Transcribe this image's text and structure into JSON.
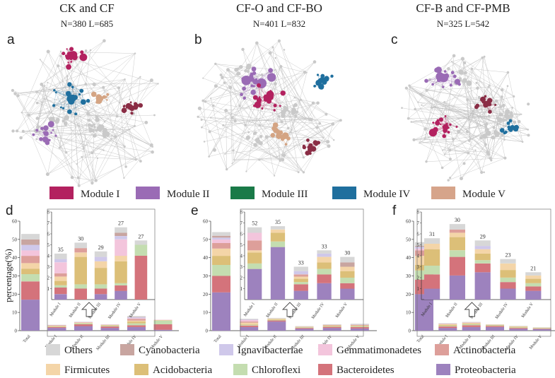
{
  "panels": [
    {
      "letter": "a",
      "title": "CK and CF",
      "stats": "N=380    L=685",
      "clusters": [
        {
          "module": "I",
          "color": "#b3215f"
        },
        {
          "module": "IV",
          "color": "#1f6f9e"
        },
        {
          "module": "II",
          "color": "#9a6bb5"
        },
        {
          "module": "V",
          "color": "#d4a483"
        },
        {
          "module": "I-b",
          "color": "#8a2d45"
        }
      ]
    },
    {
      "letter": "b",
      "title": "CF-O and CF-BO",
      "stats": "N=401    L=832",
      "clusters": [
        {
          "module": "II",
          "color": "#9a6bb5"
        },
        {
          "module": "I",
          "color": "#b3215f"
        },
        {
          "module": "IV",
          "color": "#1f6f9e"
        },
        {
          "module": "V",
          "color": "#d4a483"
        },
        {
          "module": "I-b",
          "color": "#8a2d45"
        }
      ]
    },
    {
      "letter": "c",
      "title": "CF-B and CF-PMB",
      "stats": "N=325    L=542",
      "clusters": [
        {
          "module": "II",
          "color": "#9a6bb5"
        },
        {
          "module": "I",
          "color": "#b3215f"
        },
        {
          "module": "IV",
          "color": "#1f6f9e"
        },
        {
          "module": "I-b",
          "color": "#8a2d45"
        }
      ]
    }
  ],
  "modules_legend": [
    {
      "label": "Module I",
      "color": "#b3215f"
    },
    {
      "label": "Module  II",
      "color": "#9a6bb5"
    },
    {
      "label": "Module III",
      "color": "#1a7a48"
    },
    {
      "label": "Module IV",
      "color": "#1f6f9e"
    },
    {
      "label": "Module V",
      "color": "#d6a48a"
    }
  ],
  "taxa_legend": [
    {
      "label": "Others",
      "color": "#d7d7d7"
    },
    {
      "label": "Cyanobacteria",
      "color": "#c8a5a0"
    },
    {
      "label": "Ignavibacteriae",
      "color": "#cfc8ea"
    },
    {
      "label": "Gemmatimonadetes",
      "color": "#f3c5dc"
    },
    {
      "label": "Actinobacteria",
      "color": "#dd9f9a"
    },
    {
      "label": "Firmicutes",
      "color": "#f4d5a8"
    },
    {
      "label": "Acidobacteria",
      "color": "#dcbf78"
    },
    {
      "label": "Chloroflexi",
      "color": "#c4ddb0"
    },
    {
      "label": "Bacteroidetes",
      "color": "#d4737b"
    },
    {
      "label": "Proteobacteria",
      "color": "#9d82be"
    }
  ],
  "chart_data": [
    {
      "type": "bar",
      "panel": "d",
      "ylabel": "percentage(%)",
      "main": {
        "ylim": [
          0,
          60
        ],
        "yticks": [
          0,
          10,
          20,
          30,
          40,
          50,
          60
        ],
        "categories": [
          "Total",
          "Module I",
          "Module II",
          "Module III",
          "Module IV",
          "Module V"
        ],
        "stacks": [
          [
            17,
            10,
            4,
            3,
            3,
            4,
            3,
            3,
            3,
            3
          ],
          [
            1.5,
            0.5,
            0.2,
            0.3,
            0.2,
            0.2,
            0.1,
            0.1,
            0,
            0.1
          ],
          [
            2.5,
            1,
            0.5,
            0.2,
            0.2,
            0.2,
            0.1,
            0.1,
            0,
            0.1
          ],
          [
            1.5,
            0.8,
            0.4,
            0.2,
            0.2,
            0.1,
            0.1,
            0.1,
            0,
            0.1
          ],
          [
            2,
            1,
            1,
            1,
            0.5,
            1,
            0.3,
            0.5,
            0.2,
            0.5
          ],
          [
            0.5,
            3,
            2,
            0.2,
            0.1,
            0.1,
            0.1,
            0,
            0,
            0
          ]
        ]
      },
      "inset": {
        "ylim": [
          0,
          8
        ],
        "yticks": [
          1,
          2,
          3,
          4,
          5,
          6,
          7,
          8
        ],
        "categories": [
          "Module I",
          "Module II",
          "Module III",
          "Module IV",
          "Module V"
        ],
        "counts": [
          "35",
          "30",
          "29",
          "27",
          "27"
        ],
        "stacks": [
          [
            0.5,
            0.6,
            0.2,
            0.4,
            0.4,
            0.3,
            1.0,
            0.3,
            0,
            0.5
          ],
          [
            0,
            1.0,
            0.4,
            2.5,
            0.4,
            0.4,
            0,
            0,
            0,
            0.5
          ],
          [
            0.5,
            0.5,
            0.4,
            1.5,
            0.6,
            0,
            0,
            0.4,
            0,
            0.5
          ],
          [
            0.8,
            0.5,
            0.2,
            2.0,
            0.5,
            0,
            1.5,
            0.3,
            0.3,
            0.5
          ],
          [
            0,
            4.0,
            1.0,
            0,
            0,
            0,
            0,
            0,
            0,
            0.4
          ]
        ]
      }
    },
    {
      "type": "bar",
      "panel": "e",
      "main": {
        "ylim": [
          0,
          60
        ],
        "yticks": [
          0,
          10,
          20,
          30,
          40,
          50,
          60
        ],
        "categories": [
          "Total",
          "Module I",
          "Module II",
          "Module III",
          "Module IV",
          "Module V"
        ],
        "stacks": [
          [
            21,
            9,
            6,
            5,
            4,
            3,
            2,
            1,
            1,
            2
          ],
          [
            2,
            0.8,
            0.4,
            0.4,
            0.8,
            0.6,
            0.8,
            0.2,
            0.1,
            0.4
          ],
          [
            5,
            0.6,
            0.3,
            0.4,
            0.3,
            0,
            0,
            0,
            0,
            0.4
          ],
          [
            1,
            0.5,
            0.3,
            0.2,
            0.2,
            0,
            0,
            0,
            0.1,
            0.2
          ],
          [
            1.5,
            0.6,
            0.3,
            0.3,
            0.2,
            0.2,
            0,
            0,
            0.1,
            0.3
          ],
          [
            1.2,
            0.8,
            0.4,
            0.3,
            0.2,
            0.3,
            0,
            0.1,
            0.1,
            0.4
          ]
        ]
      },
      "inset": {
        "ylim": [
          0,
          8
        ],
        "yticks": [
          1,
          2,
          3,
          4,
          5,
          6,
          7,
          8
        ],
        "categories": [
          "Module I",
          "Module II",
          "Module III",
          "Module IV",
          "Module V"
        ],
        "counts": [
          "52",
          "35",
          "33",
          "33",
          "30"
        ],
        "stacks": [
          [
            2.8,
            0,
            0.5,
            1.0,
            0.2,
            0.9,
            0.7,
            0,
            0,
            0.5
          ],
          [
            4.8,
            0,
            0.5,
            0.8,
            0.3,
            0,
            0,
            0,
            0,
            0.3
          ],
          [
            0.8,
            0.6,
            0.2,
            0.3,
            0.2,
            0.2,
            0,
            0.3,
            0,
            0.4
          ],
          [
            1.5,
            0.8,
            0.5,
            0.6,
            0.5,
            0,
            0,
            0.3,
            0,
            0.3
          ],
          [
            1.0,
            0.5,
            0.5,
            0.6,
            0.4,
            0,
            0,
            0,
            0.4,
            0.5
          ]
        ]
      }
    },
    {
      "type": "bar",
      "panel": "f",
      "main": {
        "ylim": [
          0,
          60
        ],
        "yticks": [
          0,
          10,
          20,
          30,
          40,
          50,
          60
        ],
        "categories": [
          "Total",
          "Module I",
          "Module II",
          "Module III",
          "Module IV",
          "Module V"
        ],
        "stacks": [
          [
            20,
            8,
            5,
            3,
            5,
            3,
            1,
            1,
            0.5,
            2
          ],
          [
            1.5,
            0.8,
            0.4,
            0.4,
            0.4,
            0.2,
            0.1,
            0,
            0,
            0.3
          ],
          [
            2,
            1,
            0.5,
            0.4,
            0.3,
            0.2,
            0.1,
            0,
            0,
            0.3
          ],
          [
            2,
            0.6,
            0.3,
            0.2,
            0.2,
            0,
            0,
            0,
            0,
            0.2
          ],
          [
            1,
            0.5,
            0.3,
            0.3,
            0.3,
            0,
            0,
            0,
            0,
            0.3
          ],
          [
            0.8,
            0.3,
            0.3,
            0.1,
            0.2,
            0,
            0,
            0,
            0,
            0.2
          ]
        ]
      },
      "inset": {
        "ylim": [
          0,
          8
        ],
        "yticks": [
          1,
          2,
          3,
          4,
          5,
          6,
          7,
          8
        ],
        "categories": [
          "Module I",
          "Module II",
          "Module III",
          "Module IV",
          "Module V"
        ],
        "counts": [
          "31",
          "30",
          "29",
          "23",
          "21"
        ],
        "stacks": [
          [
            1.0,
            1.3,
            0.8,
            1.5,
            0.5,
            0,
            0,
            0,
            0,
            0.5
          ],
          [
            2.2,
            1.7,
            0.6,
            1.2,
            0.4,
            0.3,
            0,
            0,
            0,
            0.5
          ],
          [
            2.5,
            0.8,
            0.3,
            0.6,
            0.4,
            0,
            0,
            0.3,
            0,
            0.5
          ],
          [
            1.0,
            0.6,
            0.4,
            0.7,
            0.6,
            0,
            0,
            0,
            0,
            0.4
          ],
          [
            0.8,
            0.4,
            0.3,
            0.4,
            0.3,
            0,
            0,
            0,
            0,
            0.3
          ]
        ]
      }
    }
  ]
}
